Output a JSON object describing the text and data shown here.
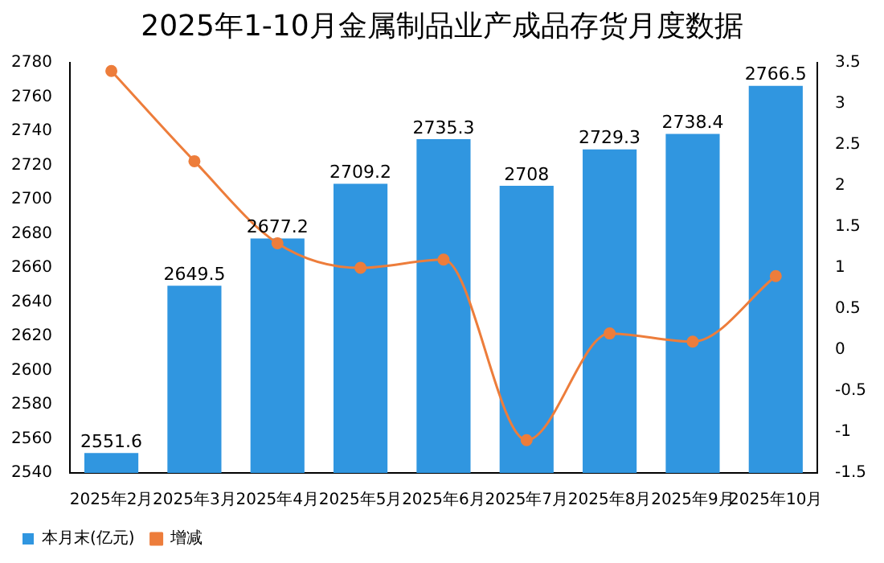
{
  "chart_data": {
    "type": "bar",
    "title": "2025年1-10月金属制品业产成品存货月度数据",
    "categories": [
      "2025年2月",
      "2025年3月",
      "2025年4月",
      "2025年5月",
      "2025年6月",
      "2025年7月",
      "2025年8月",
      "2025年9月",
      "2025年10月"
    ],
    "series": [
      {
        "name": "本月末(亿元)",
        "color": "#3096e0",
        "values": [
          2551.6,
          2649.5,
          2677.2,
          2709.2,
          2735.3,
          2708,
          2729.3,
          2738.4,
          2766.5
        ],
        "value_labels": [
          "2551.6",
          "2649.5",
          "2677.2",
          "2709.2",
          "2735.3",
          "2708",
          "2729.3",
          "2738.4",
          "2766.5"
        ]
      },
      {
        "name": "增减",
        "type": "line",
        "axis": "y2",
        "color": "#ed7d3b",
        "marker": "circle",
        "values": [
          3.4,
          2.3,
          1.3,
          1.0,
          1.1,
          -1.1,
          0.2,
          0.1,
          0.9
        ]
      }
    ],
    "ylim": [
      2540,
      2780
    ],
    "yticks": [
      2540,
      2560,
      2580,
      2600,
      2620,
      2640,
      2660,
      2680,
      2700,
      2720,
      2740,
      2760,
      2780
    ],
    "y2lim": [
      -1.5,
      3.5
    ],
    "y2ticks": [
      -1.5,
      -1,
      -0.5,
      0,
      0.5,
      1,
      1.5,
      2,
      2.5,
      3,
      3.5
    ],
    "legend": "bottom left",
    "grid": false
  }
}
